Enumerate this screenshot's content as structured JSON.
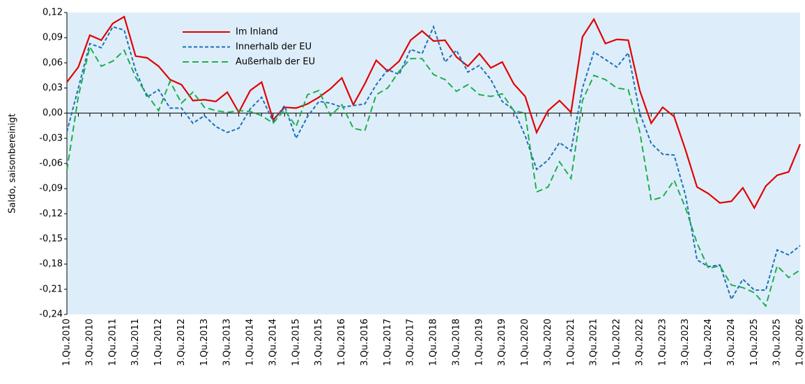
{
  "chart_data": {
    "type": "line",
    "ylabel": "Saldo, saisonbereinigt",
    "categories": [
      "1.Qu.2010",
      null,
      "3.Qu.2010",
      null,
      "1.Qu.2011",
      null,
      "3.Qu.2011",
      null,
      "1.Qu.2012",
      null,
      "3.Qu.2012",
      null,
      "1.Qu.2013",
      null,
      "3.Qu.2013",
      null,
      "1.Qu.2014",
      null,
      "3.Qu.2014",
      null,
      "1.Qu.2015",
      null,
      "3.Qu.2015",
      null,
      "1.Qu.2016",
      null,
      "3.Qu.2016",
      null,
      "1.Qu.2017",
      null,
      "3.Qu.2017",
      null,
      "1.Qu.2018",
      null,
      "3.Qu.2018",
      null,
      "1.Qu.2019",
      null,
      "3.Qu.2019",
      null,
      "1.Qu.2020",
      null,
      "3.Qu.2020",
      null,
      "1.Qu.2021",
      null,
      "3.Qu.2021",
      null,
      "1.Qu.2022",
      null,
      "3.Qu.2022",
      null,
      "1.Qu.2023",
      null,
      "3.Qu.2023",
      null,
      "1.Qu.2024",
      null,
      "3.Qu.2024",
      null,
      "1.Qu.2025",
      null,
      "3.Qu.2025",
      null,
      "1.Qu.2026"
    ],
    "series": [
      {
        "name": "Im Inland",
        "color": "#e00000",
        "dash": "none",
        "values": [
          0.037,
          0.055,
          0.093,
          0.087,
          0.107,
          0.115,
          0.068,
          0.066,
          0.056,
          0.04,
          0.034,
          0.015,
          0.016,
          0.014,
          0.025,
          0.001,
          0.027,
          0.037,
          -0.008,
          0.007,
          0.006,
          0.011,
          0.019,
          0.029,
          0.042,
          0.01,
          0.035,
          0.063,
          0.05,
          0.062,
          0.087,
          0.098,
          0.086,
          0.087,
          0.067,
          0.056,
          0.071,
          0.054,
          0.061,
          0.035,
          0.02,
          -0.023,
          0.003,
          0.015,
          0.001,
          0.091,
          0.112,
          0.083,
          0.088,
          0.087,
          0.027,
          -0.012,
          0.007,
          -0.004,
          -0.044,
          -0.088,
          -0.096,
          -0.107,
          -0.105,
          -0.089,
          -0.113,
          -0.087,
          -0.074,
          -0.07,
          -0.037
        ]
      },
      {
        "name": "Innerhalb der EU",
        "color": "#1f6fb5",
        "dash": "5 3",
        "values": [
          -0.022,
          0.03,
          0.083,
          0.078,
          0.103,
          0.099,
          0.051,
          0.019,
          0.028,
          0.006,
          0.006,
          -0.012,
          -0.003,
          -0.016,
          -0.023,
          -0.018,
          0.005,
          0.019,
          -0.01,
          0.009,
          -0.03,
          -0.004,
          0.014,
          0.012,
          0.007,
          0.009,
          0.011,
          0.034,
          0.052,
          0.046,
          0.076,
          0.071,
          0.103,
          0.061,
          0.075,
          0.049,
          0.057,
          0.04,
          0.014,
          0.004,
          -0.027,
          -0.067,
          -0.056,
          -0.035,
          -0.045,
          0.03,
          0.073,
          0.064,
          0.055,
          0.072,
          0.0,
          -0.036,
          -0.049,
          -0.05,
          -0.098,
          -0.175,
          -0.183,
          -0.181,
          -0.222,
          -0.198,
          -0.211,
          -0.211,
          -0.163,
          -0.169,
          -0.158
        ]
      },
      {
        "name": "Außerhalb der EU",
        "color": "#1fae4a",
        "dash": "9 5",
        "values": [
          -0.068,
          0.02,
          0.079,
          0.056,
          0.062,
          0.075,
          0.043,
          0.022,
          0.003,
          0.038,
          0.012,
          0.025,
          0.007,
          0.003,
          0.001,
          0.003,
          0.002,
          -0.003,
          -0.012,
          0.004,
          -0.016,
          0.022,
          0.027,
          -0.003,
          0.01,
          -0.018,
          -0.021,
          0.022,
          0.03,
          0.05,
          0.065,
          0.065,
          0.046,
          0.04,
          0.026,
          0.034,
          0.022,
          0.02,
          0.023,
          0.003,
          0.0,
          -0.094,
          -0.088,
          -0.058,
          -0.078,
          0.015,
          0.045,
          0.04,
          0.03,
          0.028,
          -0.022,
          -0.104,
          -0.1,
          -0.08,
          -0.113,
          -0.155,
          -0.185,
          -0.182,
          -0.205,
          -0.208,
          -0.214,
          -0.23,
          -0.182,
          -0.196,
          -0.187
        ]
      }
    ],
    "ylim": [
      -0.24,
      0.12
    ],
    "yticks": [
      {
        "value": -0.24,
        "label": "-0,24"
      },
      {
        "value": -0.21,
        "label": "-0,21"
      },
      {
        "value": -0.18,
        "label": "-0,18"
      },
      {
        "value": -0.15,
        "label": "-0,15"
      },
      {
        "value": -0.12,
        "label": "-0,12"
      },
      {
        "value": -0.09,
        "label": "-0,09"
      },
      {
        "value": -0.06,
        "label": "-0,06"
      },
      {
        "value": -0.03,
        "label": "-0,03"
      },
      {
        "value": 0,
        "label": "0,00"
      },
      {
        "value": 0.03,
        "label": "0,03"
      },
      {
        "value": 0.06,
        "label": "0,06"
      },
      {
        "value": 0.09,
        "label": "0,09"
      },
      {
        "value": 0.12,
        "label": "0,12"
      }
    ],
    "grid": false,
    "legend": "upper left"
  }
}
